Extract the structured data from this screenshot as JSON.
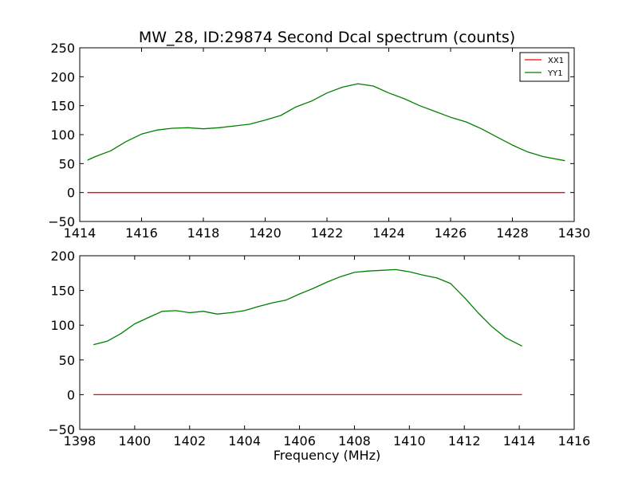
{
  "chart_data": [
    {
      "type": "line",
      "title": "MW_28, ID:29874 Second Dcal spectrum (counts)",
      "xlabel": "",
      "ylabel": "",
      "xlim": [
        1414,
        1430
      ],
      "ylim": [
        -50,
        250
      ],
      "x_ticks": [
        1414,
        1416,
        1418,
        1420,
        1422,
        1424,
        1426,
        1428,
        1430
      ],
      "y_ticks": [
        -50,
        0,
        50,
        100,
        150,
        200,
        250
      ],
      "x_tick_labels": [
        "1414",
        "1416",
        "1418",
        "1420",
        "1422",
        "1424",
        "1426",
        "1428",
        "1430"
      ],
      "y_tick_labels": [
        "−50",
        "0",
        "50",
        "100",
        "150",
        "200",
        "250"
      ],
      "grid": false,
      "legend": "top-right",
      "series": [
        {
          "name": "XX1",
          "color": "#ff0000",
          "x": [
            1414.25,
            1415,
            1416,
            1417,
            1418,
            1419,
            1420,
            1421,
            1422,
            1423,
            1424,
            1425,
            1426,
            1427,
            1428,
            1429,
            1429.7
          ],
          "y": [
            0,
            0,
            0,
            0,
            0,
            0,
            0,
            0,
            0,
            0,
            0,
            0,
            0,
            0,
            0,
            0,
            0
          ]
        },
        {
          "name": "YY1",
          "color": "#008000",
          "x": [
            1414.25,
            1414.5,
            1415,
            1415.5,
            1416,
            1416.5,
            1417,
            1417.5,
            1418,
            1418.5,
            1419,
            1419.5,
            1420,
            1420.5,
            1421,
            1421.5,
            1422,
            1422.5,
            1423,
            1423.5,
            1424,
            1424.5,
            1425,
            1425.5,
            1426,
            1426.5,
            1427,
            1427.5,
            1428,
            1428.5,
            1429,
            1429.7
          ],
          "y": [
            56,
            62,
            72,
            88,
            101,
            108,
            111,
            112,
            110,
            112,
            115,
            118,
            125,
            133,
            148,
            158,
            172,
            182,
            188,
            184,
            172,
            162,
            150,
            140,
            130,
            122,
            110,
            96,
            82,
            70,
            62,
            55
          ]
        }
      ]
    },
    {
      "type": "line",
      "title": "",
      "xlabel": "Frequency (MHz)",
      "ylabel": "",
      "xlim": [
        1398,
        1416
      ],
      "ylim": [
        -50,
        200
      ],
      "x_ticks": [
        1398,
        1400,
        1402,
        1404,
        1406,
        1408,
        1410,
        1412,
        1414,
        1416
      ],
      "y_ticks": [
        -50,
        0,
        50,
        100,
        150,
        200
      ],
      "x_tick_labels": [
        "1398",
        "1400",
        "1402",
        "1404",
        "1406",
        "1408",
        "1410",
        "1412",
        "1414",
        "1416"
      ],
      "y_tick_labels": [
        "−50",
        "0",
        "50",
        "100",
        "150",
        "200"
      ],
      "grid": false,
      "legend": "none",
      "series": [
        {
          "color": "#ff0000",
          "x": [
            1398.5,
            1399.5,
            1400.5,
            1401.5,
            1402.5,
            1403.5,
            1404.5,
            1405.5,
            1406.5,
            1407.5,
            1408.5,
            1409.5,
            1410.5,
            1411.5,
            1412.5,
            1413.5,
            1414.1
          ],
          "y": [
            0,
            0,
            0,
            0,
            0,
            0,
            0,
            0,
            0,
            0,
            0,
            0,
            0,
            0,
            0,
            0,
            0
          ]
        },
        {
          "color": "#008000",
          "x": [
            1398.5,
            1399,
            1399.5,
            1400,
            1400.5,
            1401,
            1401.5,
            1402,
            1402.5,
            1403,
            1403.5,
            1404,
            1404.5,
            1405,
            1405.5,
            1406,
            1406.5,
            1407,
            1407.5,
            1408,
            1408.5,
            1409,
            1409.5,
            1410,
            1410.5,
            1411,
            1411.5,
            1412,
            1412.5,
            1413,
            1413.5,
            1414.1
          ],
          "y": [
            72,
            77,
            88,
            102,
            111,
            120,
            121,
            118,
            120,
            116,
            118,
            121,
            127,
            132,
            136,
            145,
            153,
            162,
            170,
            176,
            178,
            179,
            180,
            177,
            172,
            168,
            160,
            140,
            118,
            98,
            82,
            70
          ]
        }
      ]
    }
  ]
}
